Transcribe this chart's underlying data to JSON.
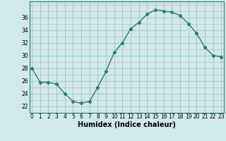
{
  "x": [
    0,
    1,
    2,
    3,
    4,
    5,
    6,
    7,
    8,
    9,
    10,
    11,
    12,
    13,
    14,
    15,
    16,
    17,
    18,
    19,
    20,
    21,
    22,
    23
  ],
  "y": [
    28,
    25.8,
    25.8,
    25.5,
    24.0,
    22.8,
    22.5,
    22.8,
    25.0,
    27.5,
    30.5,
    32.0,
    34.2,
    35.2,
    36.5,
    37.2,
    37.0,
    36.8,
    36.3,
    35.0,
    33.5,
    31.3,
    30.0,
    29.8
  ],
  "line_color": "#2e7d6e",
  "marker": "D",
  "markersize": 2.2,
  "linewidth": 1.0,
  "bg_color": "#ceeaeb",
  "grid_color_major": "#a8c8c8",
  "grid_color_minor": "#d4a8a8",
  "xlabel": "Humidex (Indice chaleur)",
  "xlabel_fontsize": 7,
  "ytick_labels": [
    "22",
    "24",
    "26",
    "28",
    "30",
    "32",
    "34",
    "36"
  ],
  "ytick_vals": [
    22,
    24,
    26,
    28,
    30,
    32,
    34,
    36
  ],
  "xtick_vals": [
    0,
    1,
    2,
    3,
    4,
    5,
    6,
    7,
    8,
    9,
    10,
    11,
    12,
    13,
    14,
    15,
    16,
    17,
    18,
    19,
    20,
    21,
    22,
    23
  ],
  "ylim": [
    21.0,
    38.5
  ],
  "xlim": [
    -0.3,
    23.3
  ],
  "tick_fontsize": 5.5
}
